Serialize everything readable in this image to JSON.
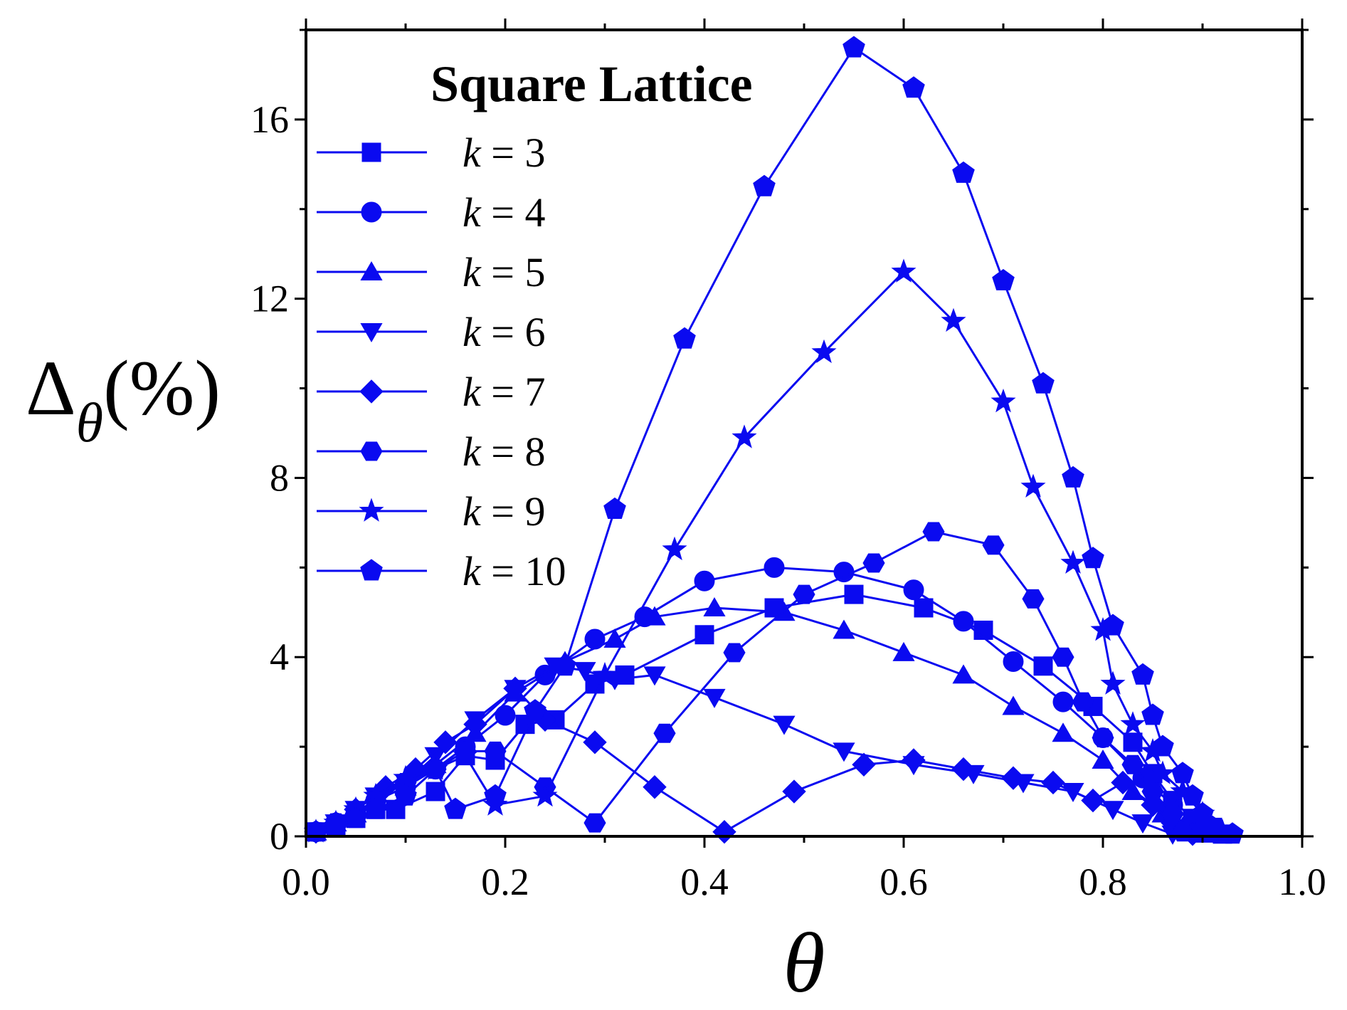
{
  "chart_data": {
    "type": "line",
    "title": "",
    "legend_title": "Square Lattice",
    "legend_position": "top-left",
    "xlabel": "θ",
    "ylabel": {
      "main": "Δ",
      "subscript": "θ",
      "suffix": "(%)"
    },
    "xlim": [
      0.0,
      1.0
    ],
    "ylim": [
      0,
      18
    ],
    "xticks": [
      0.0,
      0.2,
      0.4,
      0.6,
      0.8,
      1.0
    ],
    "xtick_labels": [
      "0.0",
      "0.2",
      "0.4",
      "0.6",
      "0.8",
      "1.0"
    ],
    "yticks": [
      0,
      4,
      8,
      12,
      16
    ],
    "ytick_labels": [
      "0",
      "4",
      "8",
      "12",
      "16"
    ],
    "grid": false,
    "color": "#0a0af0",
    "series": [
      {
        "name": "k = 3",
        "var": "k",
        "value": "3",
        "marker": "square",
        "x": [
          0.01,
          0.03,
          0.05,
          0.07,
          0.09,
          0.13,
          0.16,
          0.19,
          0.22,
          0.25,
          0.29,
          0.32,
          0.4,
          0.47,
          0.55,
          0.62,
          0.68,
          0.74,
          0.79,
          0.83,
          0.85,
          0.87,
          0.89,
          0.91,
          0.92
        ],
        "y": [
          0.1,
          0.2,
          0.4,
          0.6,
          0.6,
          1.0,
          1.8,
          1.7,
          2.5,
          2.6,
          3.4,
          3.6,
          4.5,
          5.1,
          5.4,
          5.1,
          4.6,
          3.8,
          2.9,
          2.1,
          1.4,
          0.8,
          0.4,
          0.2,
          0.05
        ]
      },
      {
        "name": "k = 4",
        "var": "k",
        "value": "4",
        "marker": "circle",
        "x": [
          0.01,
          0.03,
          0.05,
          0.07,
          0.1,
          0.13,
          0.16,
          0.2,
          0.24,
          0.29,
          0.34,
          0.4,
          0.47,
          0.54,
          0.61,
          0.66,
          0.71,
          0.76,
          0.8,
          0.84,
          0.87,
          0.89,
          0.91
        ],
        "y": [
          0.1,
          0.3,
          0.5,
          0.8,
          1.1,
          1.5,
          2.0,
          2.7,
          3.6,
          4.4,
          4.9,
          5.7,
          6.0,
          5.9,
          5.5,
          4.8,
          3.9,
          3.0,
          2.2,
          1.3,
          0.7,
          0.3,
          0.1
        ]
      },
      {
        "name": "k = 5",
        "var": "k",
        "value": "5",
        "marker": "triangle-up",
        "x": [
          0.01,
          0.03,
          0.05,
          0.07,
          0.1,
          0.13,
          0.17,
          0.21,
          0.26,
          0.31,
          0.35,
          0.41,
          0.48,
          0.54,
          0.6,
          0.66,
          0.71,
          0.76,
          0.8,
          0.83,
          0.86,
          0.88,
          0.9
        ],
        "y": [
          0.1,
          0.3,
          0.5,
          0.8,
          1.1,
          1.6,
          2.3,
          3.2,
          3.9,
          4.4,
          4.9,
          5.1,
          5.0,
          4.6,
          4.1,
          3.6,
          2.9,
          2.3,
          1.7,
          1.0,
          0.5,
          0.2,
          0.05
        ]
      },
      {
        "name": "k = 6",
        "var": "k",
        "value": "6",
        "marker": "triangle-down",
        "x": [
          0.01,
          0.03,
          0.05,
          0.07,
          0.1,
          0.13,
          0.17,
          0.21,
          0.25,
          0.28,
          0.31,
          0.35,
          0.41,
          0.48,
          0.54,
          0.61,
          0.67,
          0.72,
          0.77,
          0.81,
          0.84,
          0.87
        ],
        "y": [
          0.1,
          0.3,
          0.6,
          0.9,
          1.2,
          1.8,
          2.6,
          3.3,
          3.8,
          3.7,
          3.5,
          3.6,
          3.1,
          2.5,
          1.9,
          1.6,
          1.4,
          1.2,
          1.0,
          0.6,
          0.3,
          0.05
        ]
      },
      {
        "name": "k = 7",
        "var": "k",
        "value": "7",
        "marker": "diamond",
        "x": [
          0.01,
          0.03,
          0.05,
          0.08,
          0.11,
          0.14,
          0.17,
          0.21,
          0.24,
          0.29,
          0.35,
          0.42,
          0.49,
          0.56,
          0.61,
          0.66,
          0.71,
          0.75,
          0.79,
          0.82,
          0.85,
          0.87,
          0.89
        ],
        "y": [
          0.1,
          0.3,
          0.6,
          1.1,
          1.5,
          2.1,
          2.5,
          3.3,
          2.6,
          2.1,
          1.1,
          0.1,
          1.0,
          1.6,
          1.7,
          1.5,
          1.3,
          1.2,
          0.8,
          1.2,
          0.7,
          0.3,
          0.05
        ]
      },
      {
        "name": "k = 8",
        "var": "k",
        "value": "8",
        "marker": "hexagon",
        "x": [
          0.01,
          0.03,
          0.05,
          0.07,
          0.1,
          0.13,
          0.16,
          0.19,
          0.24,
          0.29,
          0.36,
          0.43,
          0.5,
          0.57,
          0.63,
          0.69,
          0.73,
          0.76,
          0.78,
          0.8,
          0.83,
          0.85,
          0.87,
          0.88
        ],
        "y": [
          0.1,
          0.3,
          0.5,
          0.8,
          1.2,
          1.5,
          1.9,
          1.9,
          1.1,
          0.3,
          2.3,
          4.1,
          5.4,
          6.1,
          6.8,
          6.5,
          5.3,
          4.0,
          3.0,
          2.2,
          1.6,
          1.0,
          0.5,
          0.1
        ]
      },
      {
        "name": "k = 9",
        "var": "k",
        "value": "9",
        "marker": "star",
        "x": [
          0.01,
          0.03,
          0.05,
          0.07,
          0.1,
          0.13,
          0.16,
          0.19,
          0.24,
          0.3,
          0.37,
          0.44,
          0.52,
          0.6,
          0.65,
          0.7,
          0.73,
          0.77,
          0.8,
          0.81,
          0.83,
          0.85,
          0.86,
          0.88,
          0.9,
          0.92
        ],
        "y": [
          0.1,
          0.3,
          0.6,
          0.9,
          1.3,
          1.5,
          1.8,
          0.7,
          0.9,
          3.6,
          6.4,
          8.9,
          10.8,
          12.6,
          11.5,
          9.7,
          7.8,
          6.1,
          4.6,
          3.4,
          2.5,
          1.9,
          1.4,
          1.0,
          0.5,
          0.1
        ]
      },
      {
        "name": "k = 10",
        "var": "k",
        "value": "10",
        "marker": "pentagon",
        "x": [
          0.01,
          0.03,
          0.05,
          0.07,
          0.1,
          0.13,
          0.15,
          0.19,
          0.23,
          0.26,
          0.31,
          0.38,
          0.46,
          0.55,
          0.61,
          0.66,
          0.7,
          0.74,
          0.77,
          0.79,
          0.81,
          0.84,
          0.85,
          0.86,
          0.88,
          0.89,
          0.9,
          0.91,
          0.93
        ],
        "y": [
          0.1,
          0.2,
          0.4,
          0.6,
          0.9,
          1.5,
          0.6,
          0.9,
          2.8,
          3.8,
          7.3,
          11.1,
          14.5,
          17.6,
          16.7,
          14.8,
          12.4,
          10.1,
          8.0,
          6.2,
          4.7,
          3.6,
          2.7,
          2.0,
          1.4,
          0.9,
          0.5,
          0.2,
          0.05
        ]
      }
    ]
  }
}
